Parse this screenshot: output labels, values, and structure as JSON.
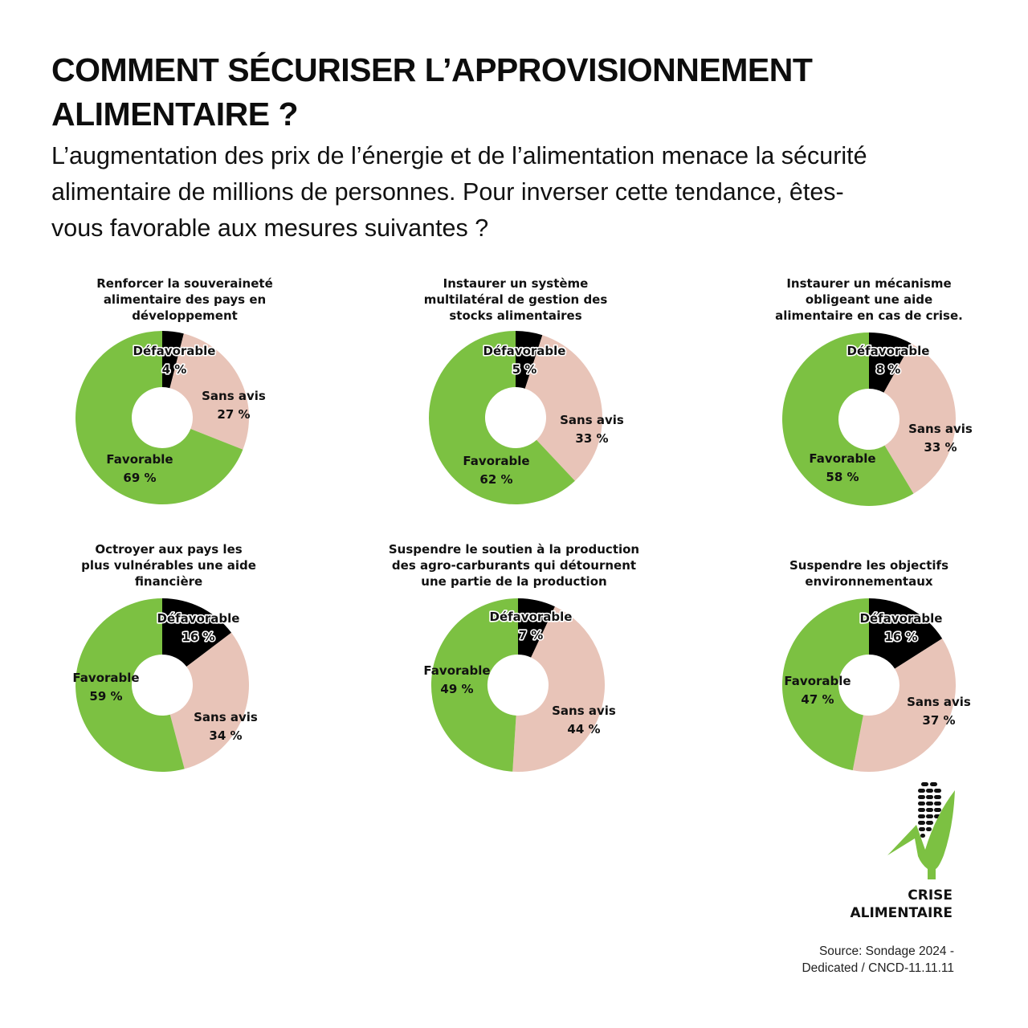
{
  "header": {
    "title": "COMMENT SÉCURISER L’APPROVISIONNEMENT ALIMENTAIRE ?",
    "subtitle": "L’augmentation des prix de l’énergie et de l’alimentation menace la sécurité alimentaire de millions de personnes. Pour inverser cette tendance, êtes-vous favorable aux mesures suivantes ?"
  },
  "colors": {
    "favorable": "#7cc142",
    "sans_avis": "#e8c4b8",
    "defavorable": "#000000"
  },
  "chart_data": [
    {
      "type": "pie",
      "title": "Renforcer la souveraineté alimentaire des pays en développement",
      "categories": [
        "Défavorable",
        "Sans avis",
        "Favorable"
      ],
      "values": [
        4,
        27,
        69
      ],
      "labels": [
        "Défavorable\n4 %",
        "Sans avis\n27 %",
        "Favorable\n69 %"
      ],
      "donut": true
    },
    {
      "type": "pie",
      "title": "Instaurer un système multilatéral de gestion des stocks alimentaires",
      "categories": [
        "Défavorable",
        "Sans avis",
        "Favorable"
      ],
      "values": [
        5,
        33,
        62
      ],
      "labels": [
        "Défavorable\n5 %",
        "Sans avis\n33 %",
        "Favorable\n62 %"
      ],
      "donut": true
    },
    {
      "type": "pie",
      "title": "Instaurer un mécanisme obligeant une aide alimentaire en cas de crise.",
      "categories": [
        "Défavorable",
        "Sans avis",
        "Favorable"
      ],
      "values": [
        8,
        33,
        58
      ],
      "labels": [
        "Défavorable\n8 %",
        "Sans avis\n33 %",
        "Favorable\n58 %"
      ],
      "donut": true
    },
    {
      "type": "pie",
      "title": "Octroyer aux pays les plus vulnérables une aide financière",
      "categories": [
        "Défavorable",
        "Sans avis",
        "Favorable"
      ],
      "values": [
        16,
        34,
        59
      ],
      "labels": [
        "Défavorable\n16 %",
        "Sans avis\n34 %",
        "Favorable\n59 %"
      ],
      "donut": true
    },
    {
      "type": "pie",
      "title": "Suspendre le soutien à la production des agro-carburants qui détournent une partie de la production",
      "categories": [
        "Défavorable",
        "Sans avis",
        "Favorable"
      ],
      "values": [
        7,
        44,
        49
      ],
      "labels": [
        "Défavorable\n7 %",
        "Sans avis\n44 %",
        "Favorable\n49 %"
      ],
      "donut": true
    },
    {
      "type": "pie",
      "title": "Suspendre les objectifs environnementaux",
      "categories": [
        "Défavorable",
        "Sans avis",
        "Favorable"
      ],
      "values": [
        16,
        37,
        47
      ],
      "labels": [
        "Défavorable\n16 %",
        "Sans avis\n37 %",
        "Favorable\n47 %"
      ],
      "donut": true
    }
  ],
  "charts": [
    {
      "title_lines": [
        "Renforcer la souveraineté",
        "alimentaire des pays en",
        "développement"
      ],
      "def_label": "Défavorable",
      "def_value": "4 %",
      "sans_label": "Sans avis",
      "sans_value": "27 %",
      "fav_label": "Favorable",
      "fav_value": "69 %"
    },
    {
      "title_lines": [
        "Instaurer un système",
        "multilatéral de gestion des",
        "stocks alimentaires"
      ],
      "def_label": "Défavorable",
      "def_value": "5 %",
      "sans_label": "Sans avis",
      "sans_value": "33 %",
      "fav_label": "Favorable",
      "fav_value": "62 %"
    },
    {
      "title_lines": [
        "Instaurer un mécanisme",
        "obligeant une aide",
        "alimentaire en cas de crise."
      ],
      "def_label": "Défavorable",
      "def_value": "8 %",
      "sans_label": "Sans avis",
      "sans_value": "33 %",
      "fav_label": "Favorable",
      "fav_value": "58 %"
    },
    {
      "title_lines": [
        "Octroyer aux pays les",
        "plus vulnérables une aide",
        "financière"
      ],
      "def_label": "Défavorable",
      "def_value": "16 %",
      "sans_label": "Sans avis",
      "sans_value": "34 %",
      "fav_label": "Favorable",
      "fav_value": "59 %"
    },
    {
      "title_lines": [
        "Suspendre le soutien à la production",
        "des agro-carburants qui détournent",
        "une partie de la production"
      ],
      "def_label": "Défavorable",
      "def_value": "7 %",
      "sans_label": "Sans avis",
      "sans_value": "44 %",
      "fav_label": "Favorable",
      "fav_value": "49 %"
    },
    {
      "title_lines": [
        "Suspendre les objectifs",
        "environnementaux"
      ],
      "def_label": "Défavorable",
      "def_value": "16 %",
      "sans_label": "Sans avis",
      "sans_value": "37 %",
      "fav_label": "Favorable",
      "fav_value": "47 %"
    }
  ],
  "logo": {
    "icon": "corn-icon",
    "line1": "CRISE",
    "line2": "ALIMENTAIRE"
  },
  "source": {
    "line1": "Source: Sondage 2024 -",
    "line2": "Dedicated /  CNCD-11.11.11"
  }
}
